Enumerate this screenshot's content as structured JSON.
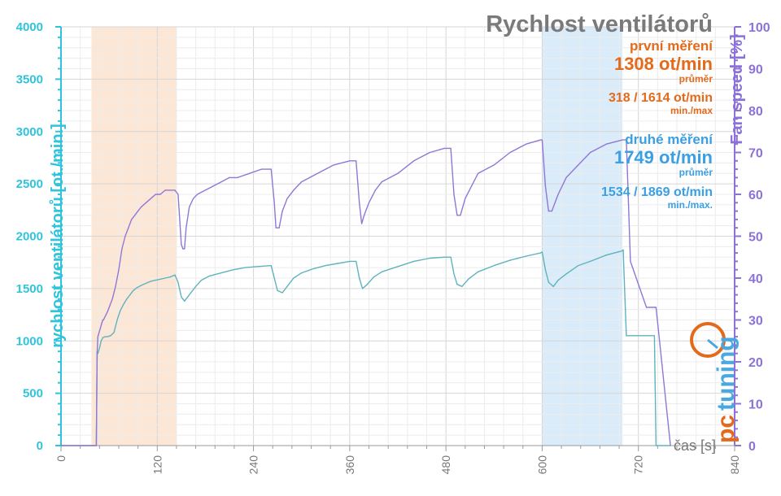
{
  "chart_data": {
    "type": "line",
    "title": "Rychlost ventilátorů",
    "xlabel": "čas [s]",
    "ylabel_left": "rychlost ventilátorů [ot./min.]",
    "ylabel_right": "Fan speed [%]",
    "xlim": [
      0,
      840
    ],
    "ylim_left": [
      0,
      4000
    ],
    "ylim_right": [
      0,
      100
    ],
    "x_ticks": [
      "0",
      "120",
      "240",
      "360",
      "480",
      "600",
      "720",
      "840"
    ],
    "y_ticks_left": [
      "0",
      "500",
      "1000",
      "1500",
      "2000",
      "2500",
      "3000",
      "3500",
      "4000"
    ],
    "y_ticks_right": [
      "0",
      "10",
      "20",
      "30",
      "40",
      "50",
      "60",
      "70",
      "80",
      "90",
      "100"
    ],
    "grid": true,
    "colors": {
      "rpm_line": "#5fb3bd",
      "percent_line": "#9077d6",
      "left_axis": "#2fc4dc",
      "right_axis": "#8c72d8",
      "band_first": "#fce3cf",
      "band_second": "#d3e8f8"
    },
    "bands": [
      {
        "from": 38,
        "to": 144
      },
      {
        "from": 600,
        "to": 700
      }
    ],
    "series": [
      {
        "axis": "left",
        "x": [
          0,
          44,
          45,
          46,
          48,
          50,
          52,
          55,
          58,
          62,
          66,
          70,
          74,
          78,
          82,
          86,
          90,
          95,
          100,
          106,
          112,
          118,
          124,
          130,
          136,
          142,
          146,
          150,
          154,
          158,
          162,
          168,
          175,
          185,
          200,
          215,
          230,
          245,
          262,
          266,
          270,
          276,
          282,
          290,
          300,
          315,
          330,
          345,
          360,
          368,
          372,
          376,
          382,
          390,
          400,
          420,
          440,
          460,
          478,
          486,
          490,
          494,
          500,
          508,
          520,
          540,
          560,
          580,
          598,
          600,
          604,
          608,
          614,
          620,
          630,
          645,
          660,
          680,
          700,
          701,
          705,
          730,
          740,
          742,
          760
        ],
        "y": [
          0,
          0,
          900,
          880,
          930,
          1000,
          1030,
          1040,
          1040,
          1050,
          1080,
          1200,
          1290,
          1350,
          1400,
          1440,
          1480,
          1510,
          1530,
          1550,
          1570,
          1580,
          1590,
          1600,
          1610,
          1630,
          1560,
          1420,
          1380,
          1420,
          1460,
          1520,
          1580,
          1620,
          1650,
          1680,
          1700,
          1710,
          1720,
          1600,
          1480,
          1460,
          1520,
          1600,
          1650,
          1690,
          1720,
          1740,
          1760,
          1760,
          1600,
          1500,
          1540,
          1610,
          1660,
          1710,
          1760,
          1790,
          1800,
          1800,
          1640,
          1540,
          1520,
          1590,
          1660,
          1720,
          1770,
          1810,
          1840,
          1850,
          1680,
          1560,
          1520,
          1580,
          1640,
          1720,
          1760,
          1820,
          1860,
          1870,
          1050,
          1050,
          1050,
          0,
          0
        ]
      },
      {
        "axis": "right",
        "x": [
          0,
          44,
          45,
          46,
          52,
          53,
          58,
          64,
          68,
          72,
          76,
          80,
          84,
          88,
          92,
          96,
          100,
          106,
          112,
          118,
          124,
          130,
          136,
          142,
          146,
          150,
          152,
          154,
          156,
          160,
          165,
          170,
          180,
          190,
          200,
          210,
          220,
          235,
          250,
          262,
          266,
          268,
          272,
          276,
          282,
          290,
          300,
          320,
          340,
          360,
          368,
          372,
          375,
          378,
          384,
          392,
          400,
          420,
          440,
          460,
          478,
          486,
          490,
          494,
          498,
          504,
          512,
          520,
          540,
          560,
          580,
          598,
          600,
          604,
          608,
          612,
          620,
          630,
          645,
          660,
          680,
          700,
          705,
          710,
          730,
          740,
          742,
          760
        ],
        "y": [
          0,
          0,
          22,
          26,
          30,
          30,
          32,
          35,
          38,
          42,
          47,
          50,
          52,
          54,
          55,
          56,
          57,
          58,
          59,
          60,
          60,
          61,
          61,
          61,
          60,
          48,
          47,
          47,
          52,
          57,
          59,
          60,
          61,
          62,
          63,
          64,
          64,
          65,
          66,
          66,
          58,
          52,
          52,
          56,
          59,
          61,
          63,
          65,
          67,
          68,
          68,
          58,
          53,
          55,
          58,
          61,
          63,
          65,
          68,
          70,
          71,
          71,
          60,
          55,
          55,
          59,
          62,
          65,
          67,
          70,
          72,
          73,
          73,
          62,
          56,
          56,
          60,
          64,
          67,
          70,
          72,
          73,
          73,
          44,
          33,
          33,
          33,
          0
        ]
      }
    ]
  },
  "annotations": {
    "first_heading": "první měření",
    "first_avg": "1308 ot/min",
    "first_avg_label": "průměr",
    "first_minmax": "318 / 1614 ot/min",
    "first_minmax_label": "min./max",
    "second_heading": "druhé měření",
    "second_avg": "1749 ot/min",
    "second_avg_label": "průměr",
    "second_minmax": "1534 / 1869 ot/min",
    "second_minmax_label": "min./max."
  },
  "logo": {
    "part1": "pc",
    "part2": "tuning"
  }
}
